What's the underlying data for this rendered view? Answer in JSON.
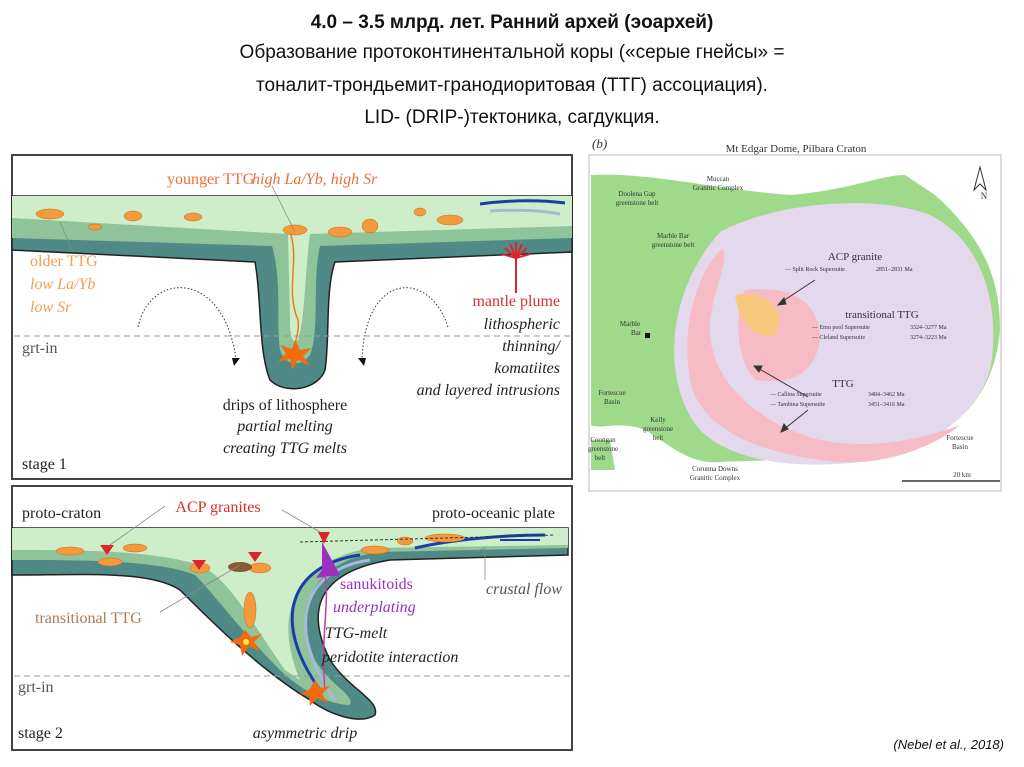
{
  "slide": {
    "title_line1": "4.0 – 3.5 млрд. лет. Ранний архей (эоархей)",
    "title_line2": "Образование протоконтинентальной коры («серые гнейсы» =",
    "title_line3": "тоналит-трондьемит-гранодиоритовая (ТТГ) ассоциация).",
    "title_line4": "LID- (DRIP-)тектоника, сагдукция.",
    "citation": "(Nebel et al., 2018)"
  },
  "stage1": {
    "younger_ttg": "younger TTG",
    "younger_ttg_note": "high La/Yb, high Sr",
    "older_ttg": "older TTG",
    "older_ttg_note1": "low La/Yb",
    "older_ttg_note2": "low Sr",
    "mantle_plume": "mantle plume",
    "plume_note1": "lithospheric",
    "plume_note2": "thinning/",
    "plume_note3": "komatiites",
    "plume_note4": "and layered intrusions",
    "grt_in": "grt-in",
    "drips": "drips of lithosphere",
    "drips_note1": "partial melting",
    "drips_note2": "creating TTG melts",
    "stage_label": "stage 1"
  },
  "stage2": {
    "proto_craton": "proto-craton",
    "acp_granites": "ACP granites",
    "proto_oceanic": "proto-oceanic plate",
    "transitional_ttg": "transitional TTG",
    "sanukitoids": "sanukitoids",
    "underplating": "underplating",
    "crustal_flow": "crustal flow",
    "ttg_melt": "TTG-melt",
    "peridotite": "peridotite interaction",
    "grt_in": "grt-in",
    "stage_label": "stage 2",
    "asymmetric_drip": "asymmetric drip"
  },
  "map": {
    "panel_label": "(b)",
    "title": "Mt Edgar Dome, Pilbara Craton",
    "north": "N",
    "muccan1": "Muccan",
    "muccan2": "Granitic Complex",
    "doolena1": "Doolena Gap",
    "doolena2": "greenstone belt",
    "marblebar_gb1": "Marble Bar",
    "marblebar_gb2": "greenstone belt",
    "marblebar1": "Marble",
    "marblebar2": "Bar",
    "acp": "ACP granite",
    "split_rock": "— Split Rock Supersuite",
    "split_rock_age": "2851–2831 Ma",
    "transitional": "transitional TTG",
    "emu_pool": "— Emu pool Supersuite",
    "emu_pool_age": "3324–3277 Ma",
    "cleland": "— Cleland Supersuite",
    "cleland_age": "3274–3223 Ma",
    "ttg": "TTG",
    "callina": "— Callina Supersuite",
    "callina_age": "3484–3462 Ma",
    "tambina": "— Tambina Supersuite",
    "tambina_age": "3451–3416 Ma",
    "fortescue_l1": "Fortescue",
    "fortescue_l2": "Basin",
    "kelly1": "Kelly",
    "kelly2": "greenstone",
    "kelly3": "belt",
    "coongan1": "Coongan",
    "coongan2": "greenstone",
    "coongan3": "belt",
    "corunna1": "Corunna Downs",
    "corunna2": "Granitic Complex",
    "fortescue_r1": "Fortescue",
    "fortescue_r2": "Basin",
    "scale": "20 km"
  },
  "colors": {
    "greenstone": "#9fd98a",
    "crust_light": "#cdeec8",
    "crust_mid": "#8fc39a",
    "lithosphere_dark": "#4f8a86",
    "ttg_orange": "#f39a3a",
    "plume_red": "#e0242c",
    "sanukitoid_purple": "#9b2fc2",
    "acp_lavender": "#e4d8ec",
    "ttg_pink": "#f6bcc6",
    "acp_yellow": "#f7c77e"
  }
}
